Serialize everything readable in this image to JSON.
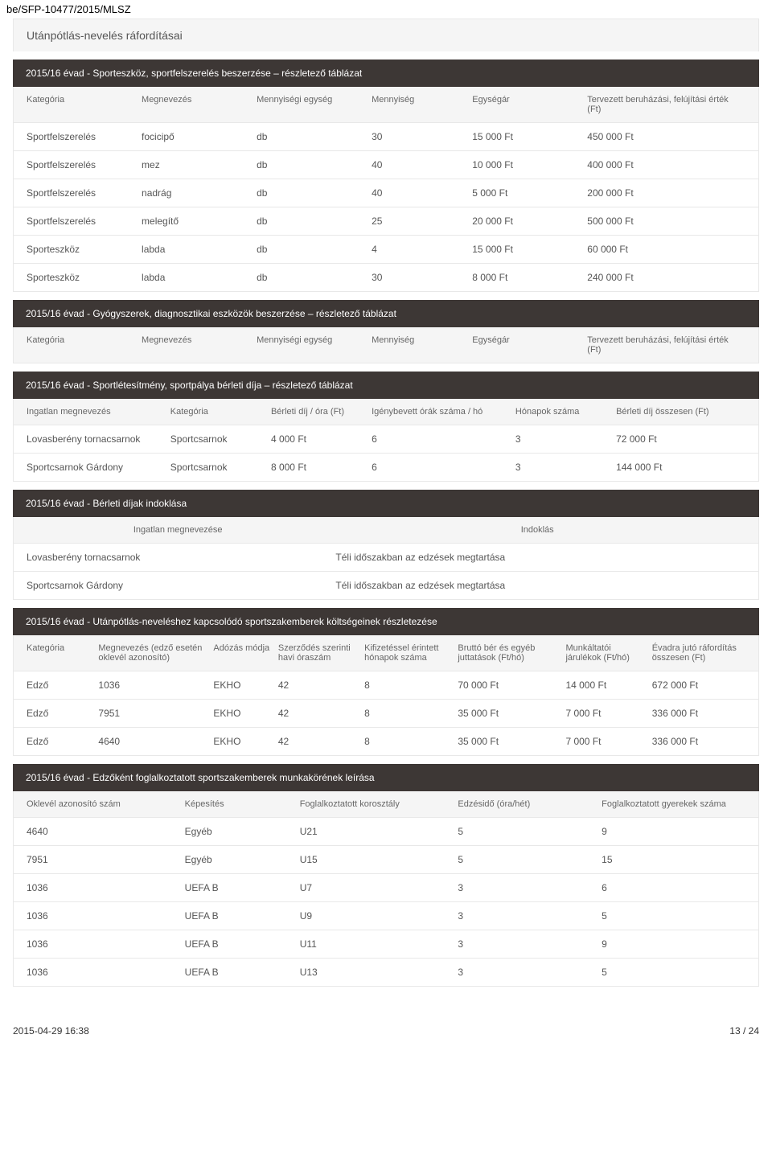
{
  "doc_id": "be/SFP-10477/2015/MLSZ",
  "section_title": "Utánpótlás-nevelés ráfordításai",
  "table1": {
    "title": "2015/16 évad - Sporteszköz, sportfelszerelés beszerzése – részletező táblázat",
    "headers": [
      "Kategória",
      "Megnevezés",
      "Mennyiségi egység",
      "Mennyiség",
      "Egységár",
      "Tervezett beruházási, felújítási érték (Ft)"
    ],
    "rows": [
      [
        "Sportfelszerelés",
        "focicipő",
        "db",
        "30",
        "15 000 Ft",
        "450 000 Ft"
      ],
      [
        "Sportfelszerelés",
        "mez",
        "db",
        "40",
        "10 000 Ft",
        "400 000 Ft"
      ],
      [
        "Sportfelszerelés",
        "nadrág",
        "db",
        "40",
        "5 000 Ft",
        "200 000 Ft"
      ],
      [
        "Sportfelszerelés",
        "melegítő",
        "db",
        "25",
        "20 000 Ft",
        "500 000 Ft"
      ],
      [
        "Sporteszköz",
        "labda",
        "db",
        "4",
        "15 000 Ft",
        "60 000 Ft"
      ],
      [
        "Sporteszköz",
        "labda",
        "db",
        "30",
        "8 000 Ft",
        "240 000 Ft"
      ]
    ]
  },
  "table2": {
    "title": "2015/16 évad - Gyógyszerek, diagnosztikai eszközök beszerzése – részletező táblázat",
    "headers": [
      "Kategória",
      "Megnevezés",
      "Mennyiségi egység",
      "Mennyiség",
      "Egységár",
      "Tervezett beruházási, felújítási érték (Ft)"
    ]
  },
  "table3": {
    "title": "2015/16 évad - Sportlétesítmény, sportpálya bérleti díja – részletező táblázat",
    "headers": [
      "Ingatlan megnevezés",
      "Kategória",
      "Bérleti díj / óra (Ft)",
      "Igénybevett órák száma / hó",
      "Hónapok száma",
      "Bérleti díj összesen (Ft)"
    ],
    "rows": [
      [
        "Lovasberény tornacsarnok",
        "Sportcsarnok",
        "4 000 Ft",
        "6",
        "3",
        "72 000 Ft"
      ],
      [
        "Sportcsarnok Gárdony",
        "Sportcsarnok",
        "8 000 Ft",
        "6",
        "3",
        "144 000 Ft"
      ]
    ]
  },
  "table4": {
    "title": "2015/16 évad - Bérleti díjak indoklása",
    "headers": [
      "Ingatlan megnevezése",
      "Indoklás"
    ],
    "rows": [
      [
        "Lovasberény tornacsarnok",
        "Téli időszakban az edzések megtartása"
      ],
      [
        "Sportcsarnok Gárdony",
        "Téli időszakban az edzések megtartása"
      ]
    ]
  },
  "table5": {
    "title": "2015/16 évad - Utánpótlás-neveléshez kapcsolódó sportszakemberek költségeinek részletezése",
    "headers": [
      "Kategória",
      "Megnevezés (edző esetén oklevél azonosító)",
      "Adózás módja",
      "Szerződés szerinti havi óraszám",
      "Kifizetéssel érintett hónapok száma",
      "Bruttó bér és egyéb juttatások (Ft/hó)",
      "Munkáltatói járulékok (Ft/hó)",
      "Évadra jutó ráfordítás összesen (Ft)"
    ],
    "rows": [
      [
        "Edző",
        "1036",
        "EKHO",
        "42",
        "8",
        "70 000 Ft",
        "14 000 Ft",
        "672 000 Ft"
      ],
      [
        "Edző",
        "7951",
        "EKHO",
        "42",
        "8",
        "35 000 Ft",
        "7 000 Ft",
        "336 000 Ft"
      ],
      [
        "Edző",
        "4640",
        "EKHO",
        "42",
        "8",
        "35 000 Ft",
        "7 000 Ft",
        "336 000 Ft"
      ]
    ]
  },
  "table6": {
    "title": "2015/16 évad - Edzőként foglalkoztatott sportszakemberek munkakörének leírása",
    "headers": [
      "Oklevél azonosító szám",
      "Képesítés",
      "Foglalkoztatott korosztály",
      "Edzésidő (óra/hét)",
      "Foglalkoztatott gyerekek száma"
    ],
    "rows": [
      [
        "4640",
        "Egyéb",
        "U21",
        "5",
        "9"
      ],
      [
        "7951",
        "Egyéb",
        "U15",
        "5",
        "15"
      ],
      [
        "1036",
        "UEFA B",
        "U7",
        "3",
        "6"
      ],
      [
        "1036",
        "UEFA B",
        "U9",
        "3",
        "5"
      ],
      [
        "1036",
        "UEFA B",
        "U11",
        "3",
        "9"
      ],
      [
        "1036",
        "UEFA B",
        "U13",
        "3",
        "5"
      ]
    ]
  },
  "footer": {
    "date": "2015-04-29 16:38",
    "page": "13 / 24"
  },
  "widths": {
    "t1": [
      "16%",
      "16%",
      "16%",
      "14%",
      "16%",
      "22%"
    ],
    "t3": [
      "20%",
      "14%",
      "14%",
      "20%",
      "14%",
      "18%"
    ],
    "t4": [
      "43%",
      "57%"
    ],
    "t5": [
      "10%",
      "16%",
      "9%",
      "12%",
      "13%",
      "15%",
      "12%",
      "13%"
    ],
    "t6": [
      "22%",
      "16%",
      "22%",
      "20%",
      "20%"
    ]
  }
}
